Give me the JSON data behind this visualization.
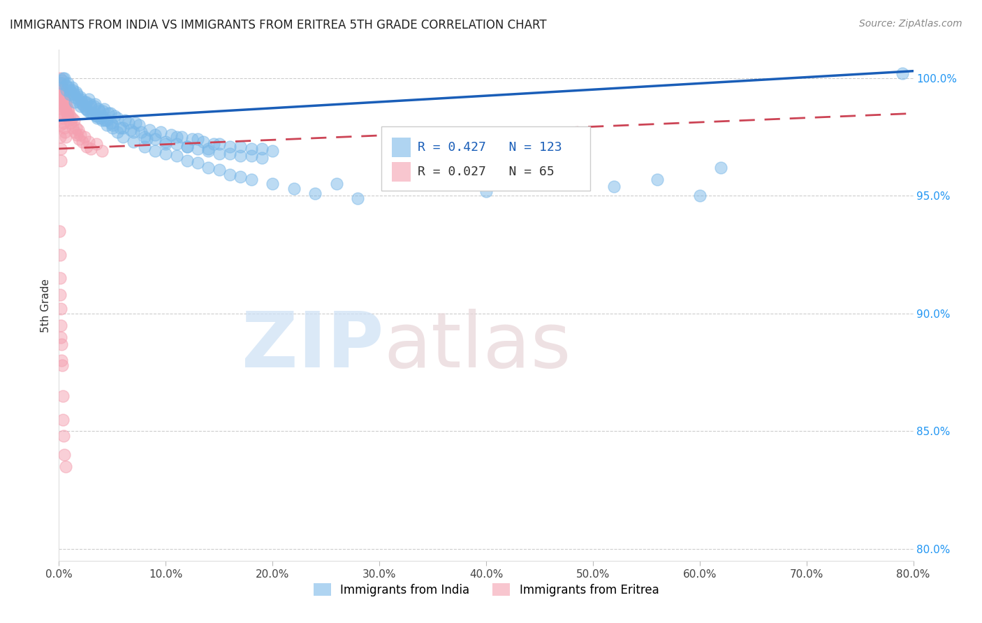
{
  "title": "IMMIGRANTS FROM INDIA VS IMMIGRANTS FROM ERITREA 5TH GRADE CORRELATION CHART",
  "source": "Source: ZipAtlas.com",
  "xlabel_vals": [
    0.0,
    10.0,
    20.0,
    30.0,
    40.0,
    50.0,
    60.0,
    70.0,
    80.0
  ],
  "ylabel_vals": [
    80.0,
    85.0,
    90.0,
    95.0,
    100.0
  ],
  "ylabel_label": "5th Grade",
  "xlim": [
    0.0,
    80.0
  ],
  "ylim": [
    79.5,
    101.2
  ],
  "india_color": "#7ab8e8",
  "eritrea_color": "#f4a0b0",
  "india_R": 0.427,
  "india_N": 123,
  "eritrea_R": 0.027,
  "eritrea_N": 65,
  "india_trend_color": "#1a5eb8",
  "eritrea_trend_color": "#cc4455",
  "india_trend": [
    0.0,
    98.2,
    80.0,
    100.3
  ],
  "eritrea_trend": [
    0.0,
    97.0,
    80.0,
    98.5
  ],
  "india_scatter": [
    [
      0.3,
      99.9
    ],
    [
      0.5,
      100.0
    ],
    [
      0.8,
      99.8
    ],
    [
      1.0,
      99.5
    ],
    [
      1.2,
      99.6
    ],
    [
      1.4,
      99.3
    ],
    [
      1.6,
      99.4
    ],
    [
      1.8,
      99.1
    ],
    [
      2.0,
      99.2
    ],
    [
      2.2,
      98.9
    ],
    [
      2.4,
      99.0
    ],
    [
      2.6,
      98.7
    ],
    [
      2.8,
      99.1
    ],
    [
      3.0,
      98.8
    ],
    [
      3.2,
      98.5
    ],
    [
      3.4,
      98.9
    ],
    [
      3.6,
      98.3
    ],
    [
      3.8,
      98.6
    ],
    [
      4.0,
      98.4
    ],
    [
      4.2,
      98.7
    ],
    [
      4.5,
      98.2
    ],
    [
      4.8,
      98.5
    ],
    [
      5.0,
      98.0
    ],
    [
      5.5,
      98.3
    ],
    [
      6.0,
      97.9
    ],
    [
      6.5,
      98.1
    ],
    [
      7.0,
      97.7
    ],
    [
      7.5,
      98.0
    ],
    [
      8.0,
      97.5
    ],
    [
      8.5,
      97.8
    ],
    [
      9.0,
      97.4
    ],
    [
      9.5,
      97.7
    ],
    [
      10.0,
      97.3
    ],
    [
      10.5,
      97.6
    ],
    [
      11.0,
      97.2
    ],
    [
      11.5,
      97.5
    ],
    [
      12.0,
      97.1
    ],
    [
      12.5,
      97.4
    ],
    [
      13.0,
      97.0
    ],
    [
      13.5,
      97.3
    ],
    [
      14.0,
      96.9
    ],
    [
      14.5,
      97.2
    ],
    [
      15.0,
      96.8
    ],
    [
      16.0,
      97.1
    ],
    [
      17.0,
      96.7
    ],
    [
      18.0,
      97.0
    ],
    [
      19.0,
      96.6
    ],
    [
      20.0,
      96.9
    ],
    [
      0.4,
      100.0
    ],
    [
      0.6,
      99.7
    ],
    [
      0.9,
      99.6
    ],
    [
      1.1,
      99.4
    ],
    [
      1.3,
      99.5
    ],
    [
      1.5,
      99.2
    ],
    [
      1.7,
      99.3
    ],
    [
      1.9,
      99.0
    ],
    [
      2.1,
      99.1
    ],
    [
      2.3,
      98.8
    ],
    [
      2.5,
      99.0
    ],
    [
      2.7,
      98.6
    ],
    [
      2.9,
      98.9
    ],
    [
      3.1,
      98.5
    ],
    [
      3.3,
      98.8
    ],
    [
      3.5,
      98.4
    ],
    [
      3.7,
      98.7
    ],
    [
      3.9,
      98.3
    ],
    [
      4.1,
      98.6
    ],
    [
      4.3,
      98.2
    ],
    [
      4.6,
      98.5
    ],
    [
      4.9,
      98.1
    ],
    [
      5.2,
      98.4
    ],
    [
      5.7,
      97.9
    ],
    [
      6.2,
      98.2
    ],
    [
      6.7,
      97.8
    ],
    [
      7.2,
      98.1
    ],
    [
      7.7,
      97.7
    ],
    [
      8.2,
      97.4
    ],
    [
      9.0,
      97.6
    ],
    [
      10.0,
      97.2
    ],
    [
      11.0,
      97.5
    ],
    [
      12.0,
      97.1
    ],
    [
      13.0,
      97.4
    ],
    [
      14.0,
      97.0
    ],
    [
      15.0,
      97.2
    ],
    [
      16.0,
      96.8
    ],
    [
      17.0,
      97.1
    ],
    [
      18.0,
      96.7
    ],
    [
      19.0,
      97.0
    ],
    [
      0.2,
      99.8
    ],
    [
      0.7,
      99.5
    ],
    [
      1.0,
      99.3
    ],
    [
      1.5,
      99.0
    ],
    [
      2.0,
      98.8
    ],
    [
      2.5,
      98.7
    ],
    [
      3.0,
      98.5
    ],
    [
      3.5,
      98.4
    ],
    [
      4.0,
      98.2
    ],
    [
      4.5,
      98.0
    ],
    [
      5.0,
      97.9
    ],
    [
      5.5,
      97.7
    ],
    [
      6.0,
      97.5
    ],
    [
      7.0,
      97.3
    ],
    [
      8.0,
      97.1
    ],
    [
      9.0,
      96.9
    ],
    [
      10.0,
      96.8
    ],
    [
      11.0,
      96.7
    ],
    [
      12.0,
      96.5
    ],
    [
      13.0,
      96.4
    ],
    [
      14.0,
      96.2
    ],
    [
      15.0,
      96.1
    ],
    [
      16.0,
      95.9
    ],
    [
      17.0,
      95.8
    ],
    [
      18.0,
      95.7
    ],
    [
      20.0,
      95.5
    ],
    [
      22.0,
      95.3
    ],
    [
      24.0,
      95.1
    ],
    [
      26.0,
      95.5
    ],
    [
      28.0,
      94.9
    ],
    [
      32.0,
      96.3
    ],
    [
      36.0,
      95.8
    ],
    [
      38.0,
      96.5
    ],
    [
      40.0,
      95.2
    ],
    [
      48.0,
      96.0
    ],
    [
      52.0,
      95.4
    ],
    [
      56.0,
      95.7
    ],
    [
      60.0,
      95.0
    ],
    [
      62.0,
      96.2
    ],
    [
      79.0,
      100.2
    ]
  ],
  "eritrea_scatter": [
    [
      0.1,
      100.0
    ],
    [
      0.15,
      99.8
    ],
    [
      0.2,
      99.7
    ],
    [
      0.25,
      99.5
    ],
    [
      0.3,
      99.6
    ],
    [
      0.35,
      99.3
    ],
    [
      0.4,
      99.4
    ],
    [
      0.45,
      99.1
    ],
    [
      0.5,
      99.2
    ],
    [
      0.55,
      98.9
    ],
    [
      0.6,
      99.0
    ],
    [
      0.65,
      98.7
    ],
    [
      0.7,
      98.9
    ],
    [
      0.75,
      98.5
    ],
    [
      0.8,
      98.7
    ],
    [
      0.85,
      98.4
    ],
    [
      0.9,
      98.6
    ],
    [
      0.95,
      98.2
    ],
    [
      1.0,
      98.4
    ],
    [
      1.1,
      98.1
    ],
    [
      1.2,
      98.3
    ],
    [
      1.3,
      97.9
    ],
    [
      1.4,
      98.2
    ],
    [
      1.5,
      97.7
    ],
    [
      1.6,
      97.9
    ],
    [
      1.7,
      97.6
    ],
    [
      1.8,
      97.8
    ],
    [
      1.9,
      97.4
    ],
    [
      2.0,
      97.6
    ],
    [
      2.2,
      97.3
    ],
    [
      2.4,
      97.5
    ],
    [
      2.6,
      97.1
    ],
    [
      2.8,
      97.3
    ],
    [
      3.0,
      97.0
    ],
    [
      3.5,
      97.2
    ],
    [
      4.0,
      96.9
    ],
    [
      0.1,
      99.3
    ],
    [
      0.15,
      99.1
    ],
    [
      0.2,
      99.0
    ],
    [
      0.25,
      98.8
    ],
    [
      0.3,
      98.7
    ],
    [
      0.35,
      98.5
    ],
    [
      0.4,
      98.3
    ],
    [
      0.45,
      98.1
    ],
    [
      0.5,
      97.9
    ],
    [
      0.55,
      97.7
    ],
    [
      0.6,
      97.5
    ],
    [
      0.05,
      99.0
    ],
    [
      0.08,
      98.5
    ],
    [
      0.1,
      98.0
    ],
    [
      0.12,
      97.5
    ],
    [
      0.15,
      97.0
    ],
    [
      0.2,
      96.5
    ],
    [
      0.05,
      93.5
    ],
    [
      0.1,
      91.5
    ],
    [
      0.15,
      90.2
    ],
    [
      0.2,
      89.5
    ],
    [
      0.25,
      88.7
    ],
    [
      0.3,
      87.8
    ],
    [
      0.35,
      86.5
    ],
    [
      0.4,
      85.5
    ],
    [
      0.45,
      84.8
    ],
    [
      0.5,
      84.0
    ],
    [
      0.6,
      83.5
    ],
    [
      0.08,
      92.5
    ],
    [
      0.12,
      90.8
    ],
    [
      0.18,
      89.0
    ],
    [
      0.22,
      88.0
    ]
  ]
}
